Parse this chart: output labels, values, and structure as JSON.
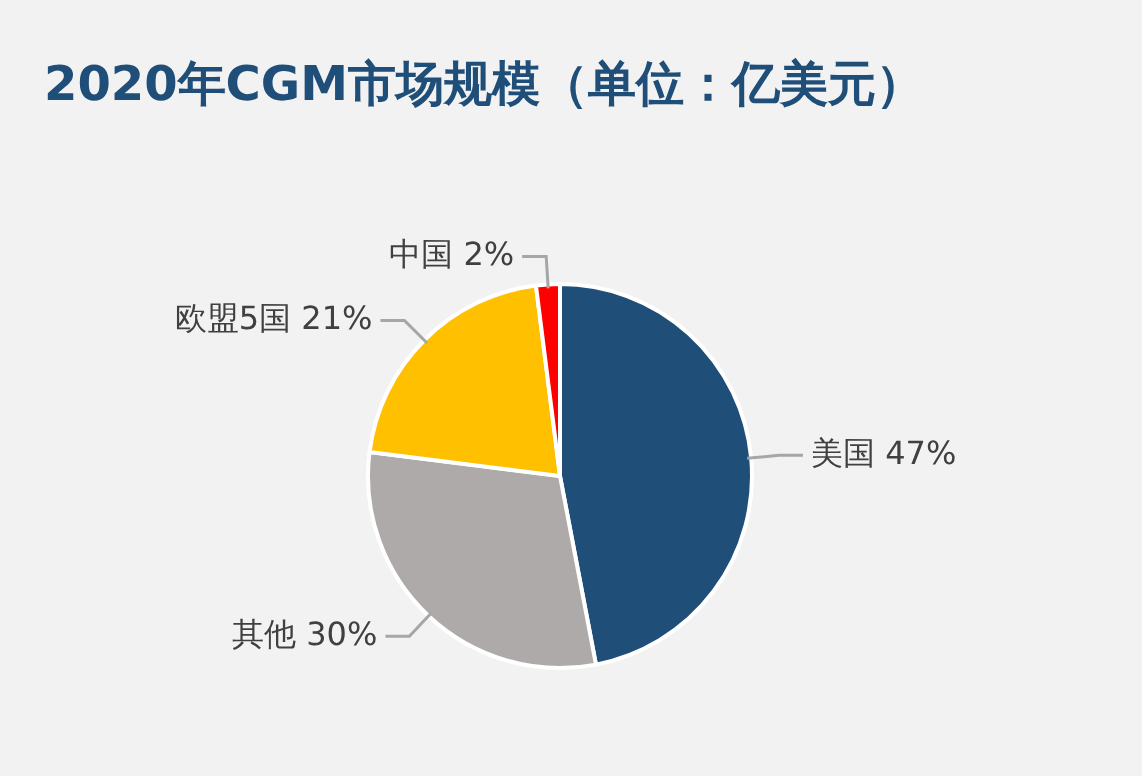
{
  "chart_data": {
    "type": "pie",
    "title": "2020年CGM市场规模（单位：亿美元）",
    "categories": [
      "美国",
      "其他",
      "欧盟5国",
      "中国"
    ],
    "values": [
      47,
      30,
      21,
      2
    ],
    "colors": [
      "#1f4e79",
      "#aeaaaa",
      "#ffc000",
      "#ff0000"
    ],
    "value_labels": [
      "47%",
      "30%",
      "21%",
      "2%"
    ]
  }
}
